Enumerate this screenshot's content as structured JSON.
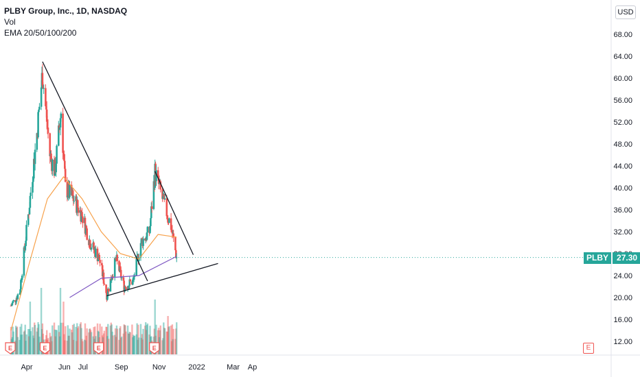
{
  "legend": {
    "title": "PLBY Group, Inc., 1D, NASDAQ",
    "vol": "Vol",
    "ema": "EMA 20/50/100/200"
  },
  "currency_button": "USD",
  "price_label": {
    "symbol": "PLBY",
    "value": "27.30"
  },
  "earnings_marker": "E",
  "colors": {
    "up": "#26a69a",
    "down": "#ef5350",
    "ema_orange": "#f7a14a",
    "ema_purple": "#7e57c2",
    "trendline": "#131722",
    "last_price": "#26a69a"
  },
  "chart_data": {
    "type": "candlestick",
    "ylim": [
      10,
      72
    ],
    "y_ticks": [
      "12.00",
      "16.00",
      "20.00",
      "24.00",
      "28.00",
      "32.00",
      "36.00",
      "40.00",
      "44.00",
      "48.00",
      "52.00",
      "56.00",
      "60.00",
      "64.00",
      "68.00"
    ],
    "x_ticks": [
      "Apr",
      "Jun",
      "Jul",
      "Sep",
      "Nov",
      "2022",
      "Mar",
      "Ap"
    ],
    "last_price": 27.3,
    "earnings_markers": [
      "E",
      "E",
      "E",
      "E"
    ],
    "price_series_approx": [
      {
        "date": "2021-03-22",
        "close": 18.5
      },
      {
        "date": "2021-04-05",
        "close": 21.0
      },
      {
        "date": "2021-04-19",
        "close": 35.0
      },
      {
        "date": "2021-05-03",
        "close": 50.0
      },
      {
        "date": "2021-05-12",
        "close": 61.0
      },
      {
        "date": "2021-05-24",
        "close": 46.0
      },
      {
        "date": "2021-06-01",
        "close": 43.0
      },
      {
        "date": "2021-06-11",
        "close": 54.0
      },
      {
        "date": "2021-06-18",
        "close": 40.0
      },
      {
        "date": "2021-07-01",
        "close": 38.0
      },
      {
        "date": "2021-07-15",
        "close": 35.0
      },
      {
        "date": "2021-07-28",
        "close": 30.0
      },
      {
        "date": "2021-08-12",
        "close": 27.0
      },
      {
        "date": "2021-08-24",
        "close": 20.5
      },
      {
        "date": "2021-09-08",
        "close": 27.0
      },
      {
        "date": "2021-09-21",
        "close": 22.0
      },
      {
        "date": "2021-10-06",
        "close": 23.0
      },
      {
        "date": "2021-10-18",
        "close": 30.0
      },
      {
        "date": "2021-11-01",
        "close": 32.0
      },
      {
        "date": "2021-11-10",
        "close": 43.0
      },
      {
        "date": "2021-11-22",
        "close": 38.0
      },
      {
        "date": "2021-12-06",
        "close": 33.0
      },
      {
        "date": "2021-12-15",
        "close": 27.3
      }
    ],
    "ema_50_approx": [
      {
        "date": "2021-03-22",
        "value": 14.0
      },
      {
        "date": "2021-04-20",
        "value": 26.0
      },
      {
        "date": "2021-05-20",
        "value": 38.0
      },
      {
        "date": "2021-06-15",
        "value": 42.0
      },
      {
        "date": "2021-07-15",
        "value": 38.0
      },
      {
        "date": "2021-08-15",
        "value": 32.0
      },
      {
        "date": "2021-09-15",
        "value": 28.0
      },
      {
        "date": "2021-10-15",
        "value": 27.0
      },
      {
        "date": "2021-11-15",
        "value": 31.5
      },
      {
        "date": "2021-12-15",
        "value": 31.0
      }
    ],
    "ema_200_approx": [
      {
        "date": "2021-06-25",
        "value": 20.0
      },
      {
        "date": "2021-08-15",
        "value": 23.5
      },
      {
        "date": "2021-10-15",
        "value": 24.0
      },
      {
        "date": "2021-12-15",
        "value": 27.5
      }
    ],
    "trendlines": [
      {
        "from": {
          "date": "2021-05-12",
          "price": 63.0
        },
        "to": {
          "date": "2021-10-29",
          "price": 23.0
        }
      },
      {
        "from": {
          "date": "2021-08-24",
          "price": 20.3
        },
        "to": {
          "date": "2022-02-20",
          "price": 26.2
        }
      },
      {
        "from": {
          "date": "2021-11-10",
          "price": 43.0
        },
        "to": {
          "date": "2022-01-11",
          "price": 27.8
        }
      }
    ]
  }
}
